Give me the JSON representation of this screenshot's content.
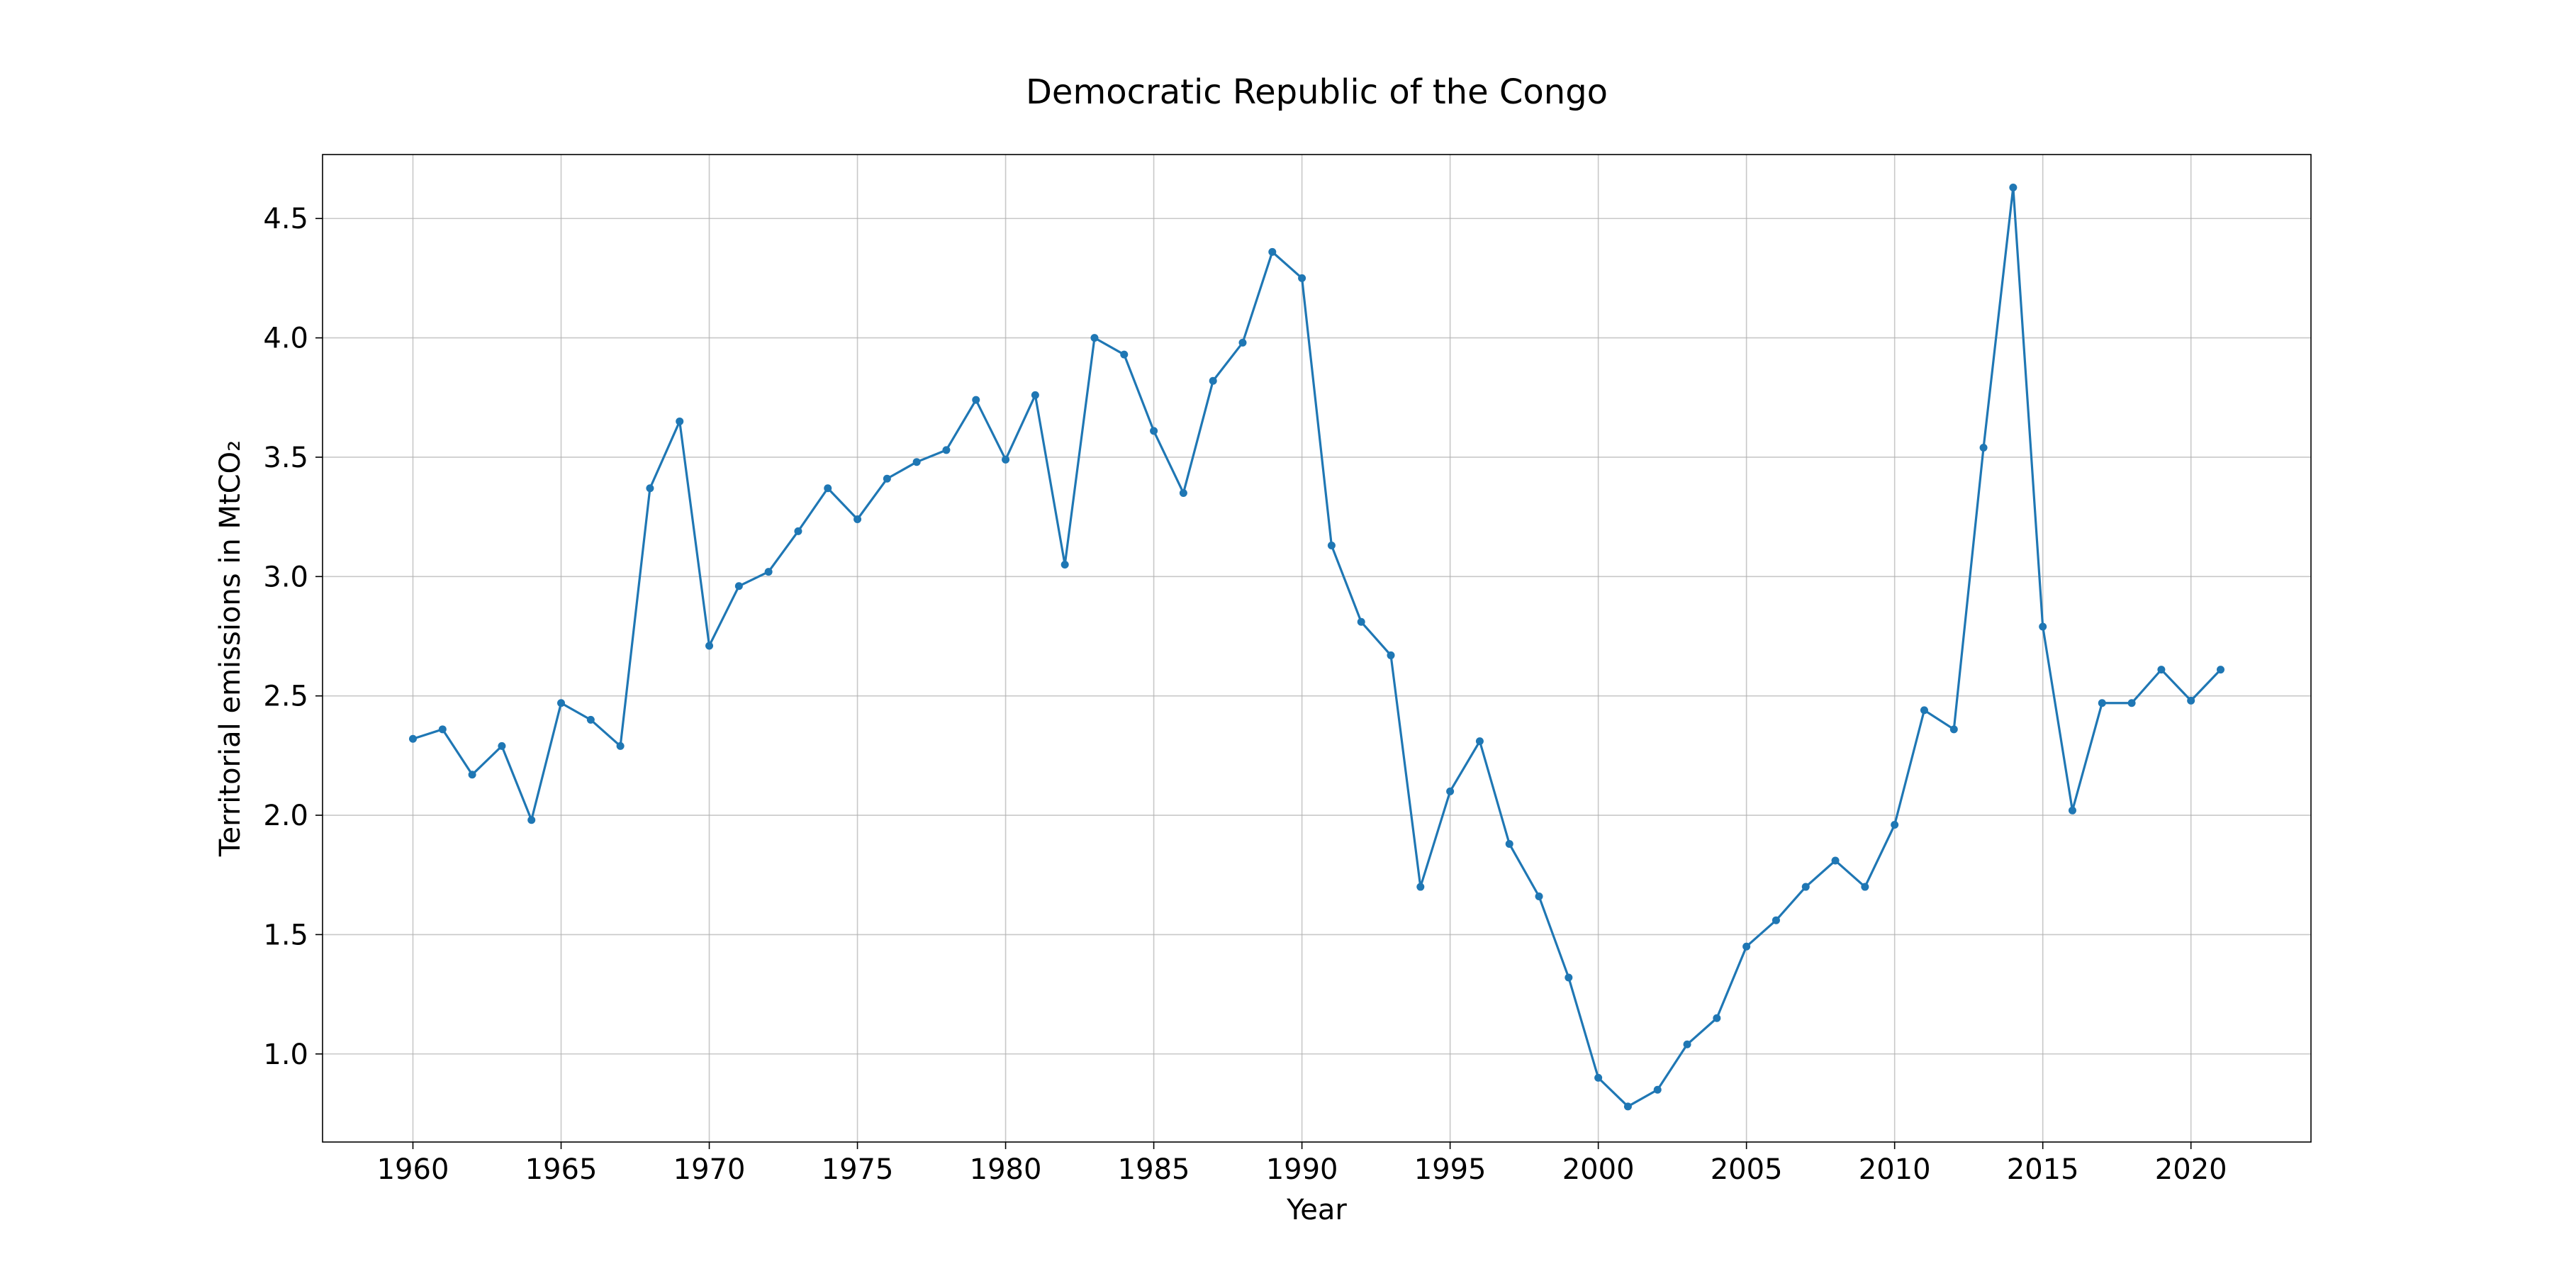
{
  "chart_data": {
    "type": "line",
    "title": "Democratic Republic of the Congo",
    "xlabel": "Year",
    "ylabel": "Territorial emissions in MtCO₂",
    "xlim": [
      1956.95,
      2024.05
    ],
    "ylim": [
      0.631,
      4.768
    ],
    "xticks": [
      1960,
      1965,
      1970,
      1975,
      1980,
      1985,
      1990,
      1995,
      2000,
      2005,
      2010,
      2015,
      2020
    ],
    "yticks": [
      1.0,
      1.5,
      2.0,
      2.5,
      3.0,
      3.5,
      4.0,
      4.5
    ],
    "xtick_labels": [
      "1960",
      "1965",
      "1970",
      "1975",
      "1980",
      "1985",
      "1990",
      "1995",
      "2000",
      "2005",
      "2010",
      "2015",
      "2020"
    ],
    "ytick_labels": [
      "1.0",
      "1.5",
      "2.0",
      "2.5",
      "3.0",
      "3.5",
      "4.0",
      "4.5"
    ],
    "grid": true,
    "series": [
      {
        "color": "#1f77b4",
        "marker": "circle",
        "x": [
          1960,
          1961,
          1962,
          1963,
          1964,
          1965,
          1966,
          1967,
          1968,
          1969,
          1970,
          1971,
          1972,
          1973,
          1974,
          1975,
          1976,
          1977,
          1978,
          1979,
          1980,
          1981,
          1982,
          1983,
          1984,
          1985,
          1986,
          1987,
          1988,
          1989,
          1990,
          1991,
          1992,
          1993,
          1994,
          1995,
          1996,
          1997,
          1998,
          1999,
          2000,
          2001,
          2002,
          2003,
          2004,
          2005,
          2006,
          2007,
          2008,
          2009,
          2010,
          2011,
          2012,
          2013,
          2014,
          2015,
          2016,
          2017,
          2018,
          2019,
          2020,
          2021
        ],
        "y": [
          2.32,
          2.36,
          2.17,
          2.29,
          1.98,
          2.47,
          2.4,
          2.29,
          3.37,
          3.65,
          2.71,
          2.96,
          3.02,
          3.19,
          3.37,
          3.24,
          3.41,
          3.48,
          3.53,
          3.74,
          3.49,
          3.76,
          3.05,
          4.0,
          3.93,
          3.61,
          3.35,
          3.82,
          3.98,
          4.36,
          4.25,
          3.13,
          2.81,
          2.67,
          1.7,
          2.1,
          2.31,
          1.88,
          1.66,
          1.32,
          0.9,
          0.78,
          0.85,
          1.04,
          1.15,
          1.45,
          1.56,
          1.7,
          1.81,
          1.7,
          1.96,
          2.44,
          2.36,
          3.54,
          4.63,
          2.79,
          2.02,
          2.47,
          2.47,
          2.61,
          2.48,
          2.61
        ]
      }
    ]
  }
}
